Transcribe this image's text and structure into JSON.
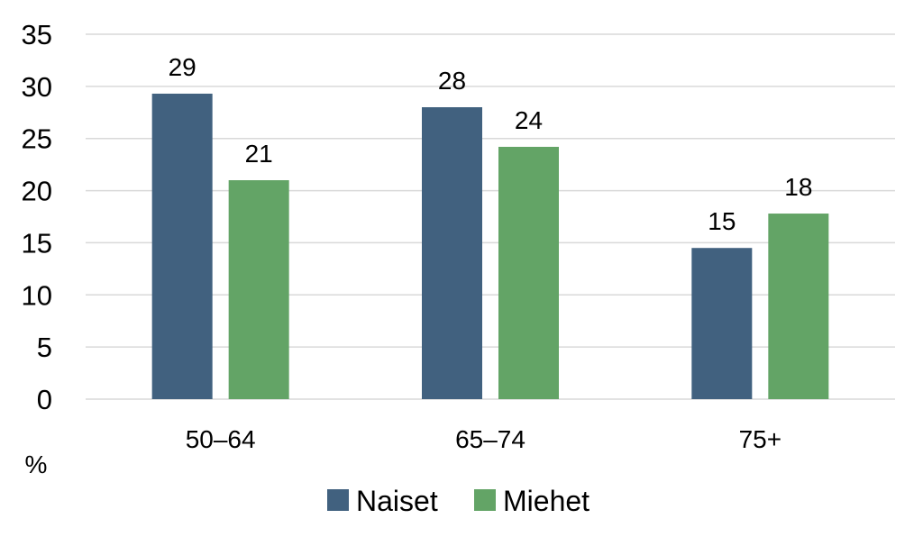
{
  "chart_data": {
    "type": "bar",
    "categories": [
      "50–64",
      "65–74",
      "75+"
    ],
    "series": [
      {
        "name": "Naiset",
        "values": [
          29.3,
          28.0,
          14.5
        ],
        "labels": [
          "29",
          "28",
          "15"
        ],
        "color": "#41617f"
      },
      {
        "name": "Miehet",
        "values": [
          21.0,
          24.2,
          17.8
        ],
        "labels": [
          "21",
          "24",
          "18"
        ],
        "color": "#63a466"
      }
    ],
    "ylim": [
      0,
      35
    ],
    "yticks": [
      0,
      5,
      10,
      15,
      20,
      25,
      30,
      35
    ],
    "unit_label": "%",
    "grid": true,
    "legend_position": "bottom"
  }
}
